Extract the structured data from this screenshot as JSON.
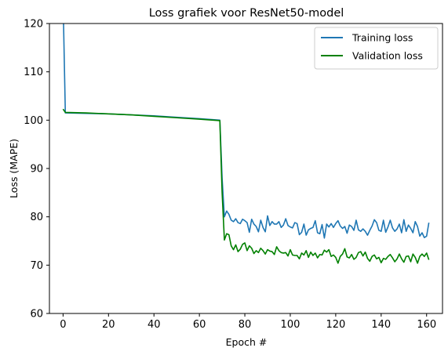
{
  "chart_data": {
    "type": "line",
    "title": "Loss grafiek voor ResNet50-model",
    "xlabel": "Epoch #",
    "ylabel": "Loss (MAPE)",
    "xlim": [
      -6,
      167
    ],
    "ylim": [
      60,
      120
    ],
    "xticks": [
      0,
      20,
      40,
      60,
      80,
      100,
      120,
      140,
      160
    ],
    "yticks": [
      60,
      70,
      80,
      90,
      100,
      110,
      120
    ],
    "grid": false,
    "legend_position": "top-right",
    "series": [
      {
        "name": "Training loss",
        "color": "#1f77b4",
        "x": [
          0,
          1,
          10,
          20,
          30,
          40,
          50,
          60,
          69,
          70,
          71,
          72,
          73,
          74,
          75,
          76,
          77,
          78,
          79,
          80,
          81,
          82,
          83,
          84,
          85,
          86,
          87,
          88,
          89,
          90,
          91,
          92,
          93,
          94,
          95,
          96,
          97,
          98,
          99,
          100,
          101,
          102,
          103,
          104,
          105,
          106,
          107,
          108,
          109,
          110,
          111,
          112,
          113,
          114,
          115,
          116,
          117,
          118,
          119,
          120,
          121,
          122,
          123,
          124,
          125,
          126,
          127,
          128,
          129,
          130,
          131,
          132,
          133,
          134,
          135,
          136,
          137,
          138,
          139,
          140,
          141,
          142,
          143,
          144,
          145,
          146,
          147,
          148,
          149,
          150,
          151,
          152,
          153,
          154,
          155,
          156,
          157,
          158,
          159,
          160,
          161
        ],
        "y": [
          125,
          101.5,
          101.4,
          101.3,
          101.1,
          100.9,
          100.6,
          100.3,
          100.0,
          88,
          80,
          81.2,
          80.5,
          79.3,
          79.0,
          79.6,
          78.8,
          78.6,
          79.5,
          79.2,
          78.8,
          76.8,
          79.5,
          78.5,
          78.0,
          76.9,
          79.3,
          77.8,
          76.9,
          80.2,
          78.2,
          79.0,
          78.5,
          78.5,
          79.0,
          77.8,
          78.3,
          79.6,
          78.2,
          77.9,
          77.7,
          78.8,
          78.6,
          76.3,
          76.8,
          78.5,
          76.2,
          77.3,
          77.6,
          77.8,
          79.2,
          76.7,
          76.5,
          78.4,
          75.6,
          78.5,
          77.9,
          78.6,
          77.8,
          78.6,
          79.2,
          78.1,
          77.6,
          78.0,
          76.6,
          78.3,
          78.0,
          77.2,
          79.3,
          77.3,
          77.0,
          77.5,
          77.0,
          76.2,
          77.2,
          78.1,
          79.4,
          78.8,
          77.2,
          77.0,
          79.3,
          76.8,
          77.9,
          79.3,
          77.7,
          77.0,
          77.5,
          78.5,
          76.7,
          79.4,
          77.0,
          78.3,
          77.6,
          76.7,
          79.0,
          78.0,
          76.0,
          76.7,
          75.7,
          76.0,
          78.8
        ]
      },
      {
        "name": "Validation loss",
        "color": "#008000",
        "x": [
          0,
          1,
          10,
          20,
          30,
          40,
          50,
          60,
          69,
          70,
          71,
          72,
          73,
          74,
          75,
          76,
          77,
          78,
          79,
          80,
          81,
          82,
          83,
          84,
          85,
          86,
          87,
          88,
          89,
          90,
          91,
          92,
          93,
          94,
          95,
          96,
          97,
          98,
          99,
          100,
          101,
          102,
          103,
          104,
          105,
          106,
          107,
          108,
          109,
          110,
          111,
          112,
          113,
          114,
          115,
          116,
          117,
          118,
          119,
          120,
          121,
          122,
          123,
          124,
          125,
          126,
          127,
          128,
          129,
          130,
          131,
          132,
          133,
          134,
          135,
          136,
          137,
          138,
          139,
          140,
          141,
          142,
          143,
          144,
          145,
          146,
          147,
          148,
          149,
          150,
          151,
          152,
          153,
          154,
          155,
          156,
          157,
          158,
          159,
          160,
          161
        ],
        "y": [
          102.3,
          101.6,
          101.5,
          101.3,
          101.1,
          100.8,
          100.5,
          100.2,
          99.9,
          85,
          75.2,
          76.5,
          76.3,
          74.0,
          73.2,
          74.2,
          72.8,
          73.3,
          74.3,
          74.6,
          73.0,
          74.0,
          73.5,
          72.4,
          73.0,
          72.6,
          73.5,
          73.0,
          72.3,
          73.2,
          72.9,
          72.8,
          72.2,
          73.8,
          73.0,
          72.6,
          72.5,
          72.6,
          71.9,
          73.2,
          72.1,
          72.0,
          72.0,
          71.3,
          72.5,
          72.1,
          73.0,
          71.6,
          72.7,
          72.0,
          72.5,
          71.5,
          72.2,
          72.1,
          73.1,
          72.7,
          73.2,
          71.8,
          72.1,
          71.6,
          70.4,
          71.8,
          72.3,
          73.4,
          71.7,
          71.5,
          72.2,
          71.2,
          71.6,
          72.6,
          72.8,
          71.9,
          72.7,
          71.4,
          70.8,
          71.8,
          72.1,
          71.3,
          71.6,
          70.5,
          71.4,
          71.2,
          71.8,
          72.2,
          71.5,
          70.7,
          71.3,
          72.3,
          71.3,
          70.6,
          71.8,
          71.9,
          70.7,
          72.3,
          71.6,
          70.4,
          71.8,
          72.3,
          71.8,
          72.5,
          71.1
        ]
      }
    ]
  }
}
